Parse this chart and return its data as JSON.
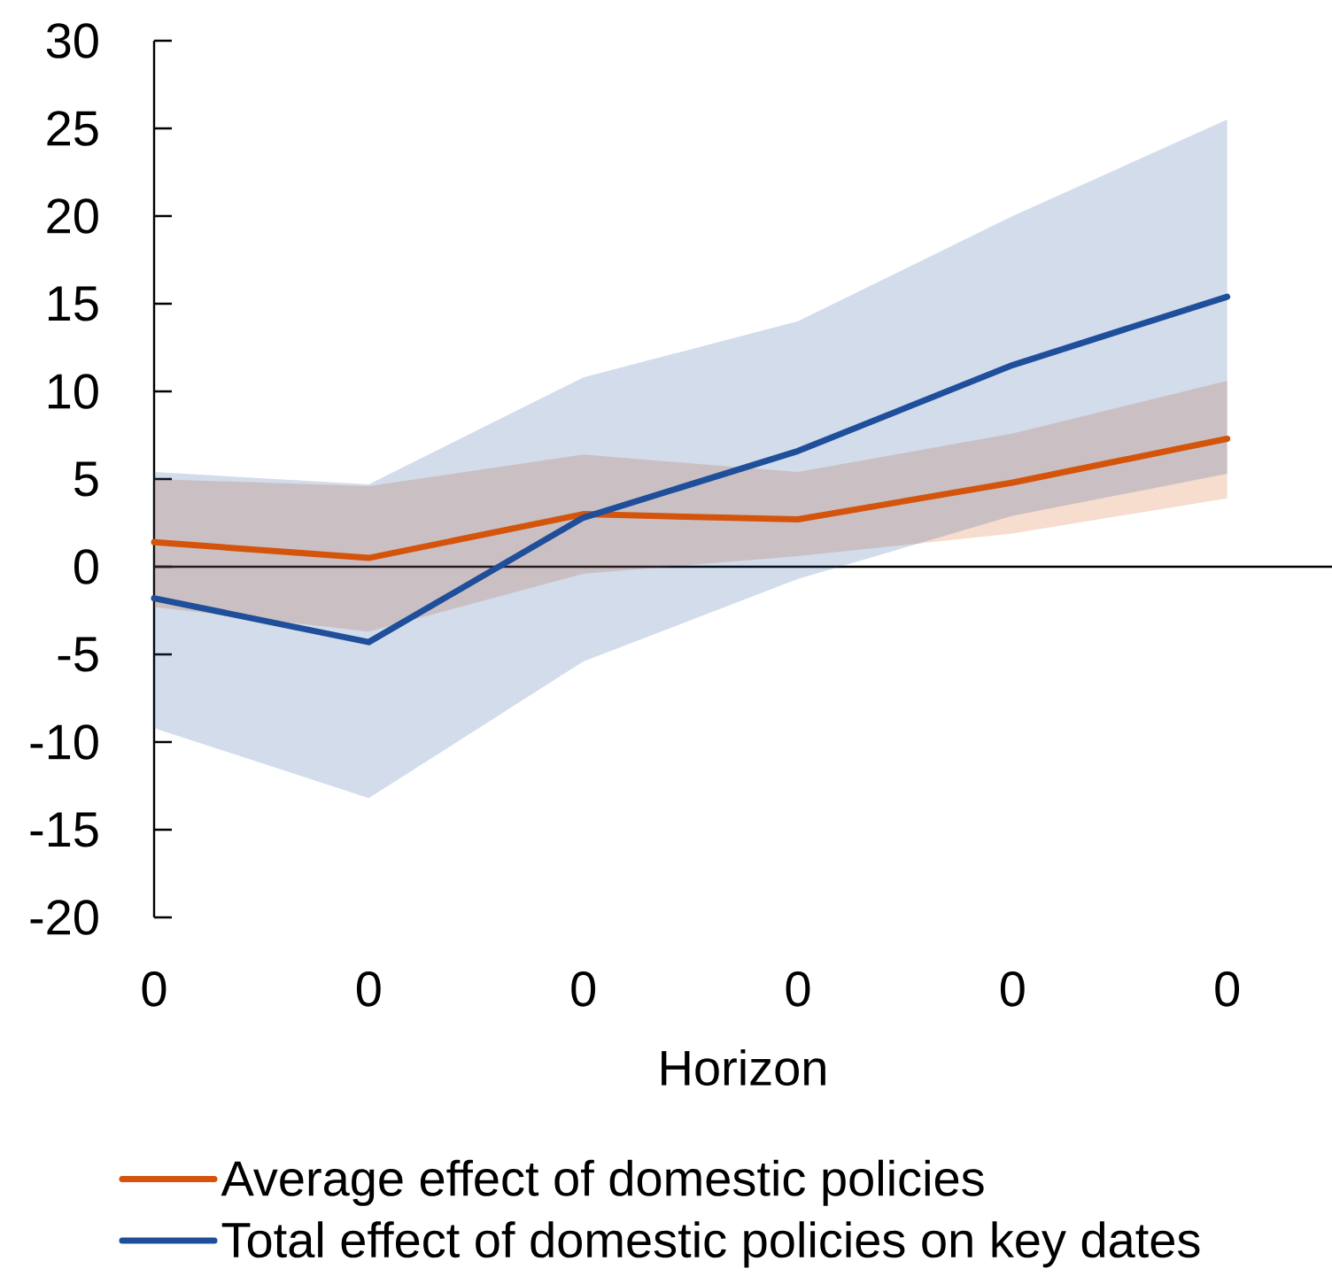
{
  "chart_data": {
    "type": "line",
    "categories": [
      "0",
      "0",
      "0",
      "0",
      "0",
      "0"
    ],
    "xlabel": "Horizon",
    "ylim": [
      -20,
      30
    ],
    "yticks": [
      -20,
      -15,
      -10,
      -5,
      0,
      5,
      10,
      15,
      20,
      25,
      30
    ],
    "legend": "bottom",
    "series": [
      {
        "name": "Average effect of domestic policies",
        "color": "#d4540c",
        "values": [
          1.4,
          0.5,
          3.0,
          2.7,
          4.8,
          7.3
        ],
        "lower": [
          -2.3,
          -3.7,
          -0.4,
          0.6,
          1.9,
          3.9
        ],
        "upper": [
          5.0,
          4.6,
          6.4,
          5.4,
          7.6,
          10.6
        ]
      },
      {
        "name": "Total effect of domestic policies on key dates",
        "color": "#1f4e9b",
        "values": [
          -1.8,
          -4.3,
          2.8,
          6.6,
          11.5,
          15.4
        ],
        "lower": [
          -9.2,
          -13.2,
          -5.4,
          -0.7,
          2.9,
          5.3
        ],
        "upper": [
          5.4,
          4.7,
          10.8,
          14.0,
          20.0,
          25.5
        ]
      }
    ]
  }
}
